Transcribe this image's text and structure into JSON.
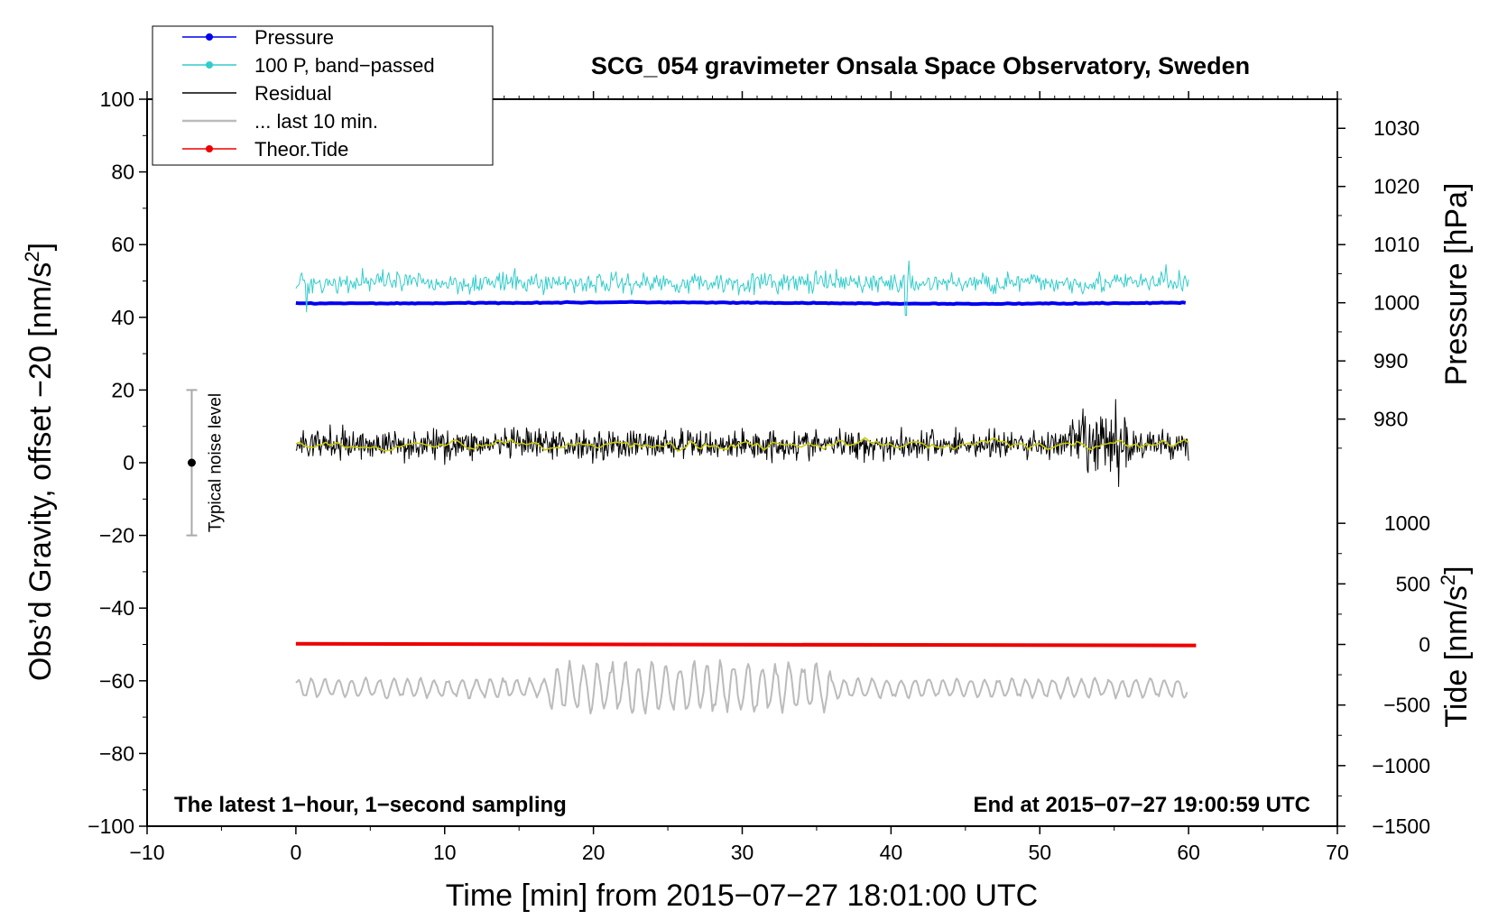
{
  "chart_data": {
    "type": "line",
    "title": "SCG_054 gravimeter Onsala Space Observatory, Sweden",
    "xlabel": "Time [min] from 2015−07−27 18:01:00 UTC",
    "ylabel_left": "Obs’d Gravity, offset −20 [nm/s",
    "ylabel_left_sup": "2",
    "ylabel_left_end": "]",
    "ylabel_right_pressure": "Pressure [hPa]",
    "ylabel_right_tide": "Tide [nm/s",
    "ylabel_right_tide_sup": "2",
    "ylabel_right_tide_end": "]",
    "xlim": [
      -10,
      70
    ],
    "ylim": [
      -100,
      100
    ],
    "xticks": [
      -10,
      0,
      10,
      20,
      30,
      40,
      50,
      60,
      70
    ],
    "xtick_labels": [
      "−10",
      "0",
      "10",
      "20",
      "30",
      "40",
      "50",
      "60",
      "70"
    ],
    "yticks": [
      -100,
      -80,
      -60,
      -40,
      -20,
      0,
      20,
      40,
      60,
      80,
      100
    ],
    "ytick_labels": [
      "−100",
      "−80",
      "−60",
      "−40",
      "−20",
      "0",
      "20",
      "40",
      "60",
      "80",
      "100"
    ],
    "pressure_axis": {
      "ticks": [
        980,
        990,
        1000,
        1010,
        1020,
        1030
      ],
      "tick_labels": [
        "980",
        "990",
        "1000",
        "1010",
        "1020",
        "1030"
      ],
      "map_value_to_left_axis": [
        [
          1000,
          44
        ],
        [
          1030,
          92
        ]
      ]
    },
    "tide_axis": {
      "ticks": [
        -1500,
        -1000,
        -500,
        0,
        500,
        1000
      ],
      "tick_labels": [
        "−1500",
        "−1000",
        "−500",
        "0",
        "500",
        "1000"
      ],
      "map_value_to_left_axis": [
        [
          -1500,
          -100
        ],
        [
          0,
          -50
        ]
      ]
    },
    "legend": {
      "placement": "top-left",
      "entries": [
        {
          "label": "Pressure",
          "color": "#0000ee",
          "marker": true
        },
        {
          "label": "100 P, band−passed",
          "color": "#33cccc",
          "marker": true
        },
        {
          "label": "Residual",
          "color": "#000000",
          "marker": false
        },
        {
          "label": "... last 10 min.",
          "color": "#bbbbbb",
          "marker": false
        },
        {
          "label": "Theor.Tide",
          "color": "#ee0000",
          "marker": true
        }
      ]
    },
    "series": [
      {
        "name": "Pressure",
        "color": "#0000ee",
        "unit_axis": "pressure",
        "x_range": [
          0,
          60
        ],
        "level_hpa": 999.9,
        "trend": [
          0,
          0,
          0.1,
          0.2,
          0.1,
          0,
          -0.1,
          0,
          0.1
        ],
        "noise": 0.15
      },
      {
        "name": "100 P, band−passed",
        "color": "#33cccc",
        "unit_axis": "gravity",
        "x_range": [
          0,
          60
        ],
        "level": 49.5,
        "amplitude": 1.8,
        "spikes": [
          [
            0.7,
            -8
          ],
          [
            4.5,
            4
          ],
          [
            41,
            -9
          ],
          [
            41.2,
            6
          ],
          [
            58.5,
            5
          ]
        ]
      },
      {
        "name": "Residual",
        "color": "#000000",
        "unit_axis": "gravity",
        "x_range": [
          0,
          60
        ],
        "level": 5,
        "amplitude": 2.5,
        "burst": {
          "from": 52,
          "to": 56,
          "amplitude": 6
        }
      },
      {
        "name": "Residual smoothed",
        "color": "#cccc00",
        "unit_axis": "gravity",
        "x_range": [
          0,
          60
        ],
        "level": 5,
        "amplitude": 0.7
      },
      {
        "name": "... last 10 min.",
        "color": "#bbbbbb",
        "unit_axis": "gravity",
        "x_range": [
          0,
          60
        ],
        "level": -62,
        "amplitude": 3,
        "burst": {
          "from": 17,
          "to": 36,
          "amplitude": 8
        }
      },
      {
        "name": "Theor.Tide",
        "color": "#ee0000",
        "unit_axis": "tide",
        "x_range": [
          0,
          60.5
        ],
        "start_nm_s2": 5,
        "end_nm_s2": -8
      }
    ],
    "noise_bar": {
      "label": "Typical noise level",
      "x": -7,
      "y": 0,
      "low": -20,
      "high": 20
    },
    "annotations": {
      "bottom_left": "The latest 1−hour, 1−second sampling",
      "bottom_right": "End at 2015−07−27 19:00:59 UTC"
    }
  }
}
